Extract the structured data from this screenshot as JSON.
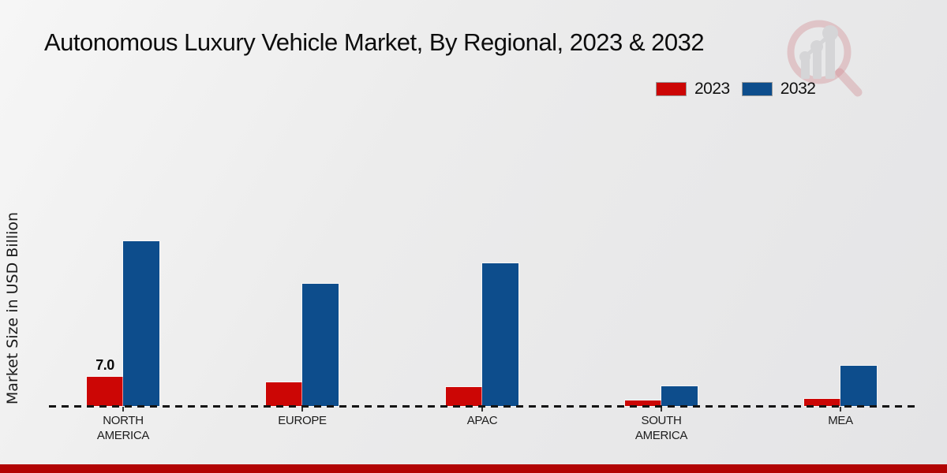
{
  "title": "Autonomous Luxury Vehicle Market, By Regional, 2023 & 2032",
  "y_axis_label": "Market Size in USD Billion",
  "legend": {
    "items": [
      {
        "label": "2023",
        "color": "#cc0605"
      },
      {
        "label": "2032",
        "color": "#0d4d8c"
      }
    ]
  },
  "watermark": {
    "icon": "magnifier-bar-chart-logo"
  },
  "footer": {
    "accent_color": "#b20404"
  },
  "chart_data": {
    "type": "bar",
    "title": "Autonomous Luxury Vehicle Market, By Regional, 2023 & 2032",
    "ylabel": "Market Size in USD Billion",
    "units": "USD Billion",
    "categories": [
      "NORTH AMERICA",
      "EUROPE",
      "APAC",
      "SOUTH AMERICA",
      "MEA"
    ],
    "series": [
      {
        "name": "2023",
        "color": "#cc0605",
        "values": [
          7.0,
          5.8,
          4.6,
          1.4,
          1.8
        ]
      },
      {
        "name": "2032",
        "color": "#0d4d8c",
        "values": [
          40.0,
          29.6,
          34.6,
          4.7,
          9.8
        ]
      }
    ],
    "bar_labels": [
      {
        "category_index": 0,
        "series_index": 0,
        "text": "7.0"
      }
    ],
    "grid": false,
    "baseline_style": "dashed",
    "legend_position": "top-right",
    "ylim": [
      0,
      45
    ]
  }
}
